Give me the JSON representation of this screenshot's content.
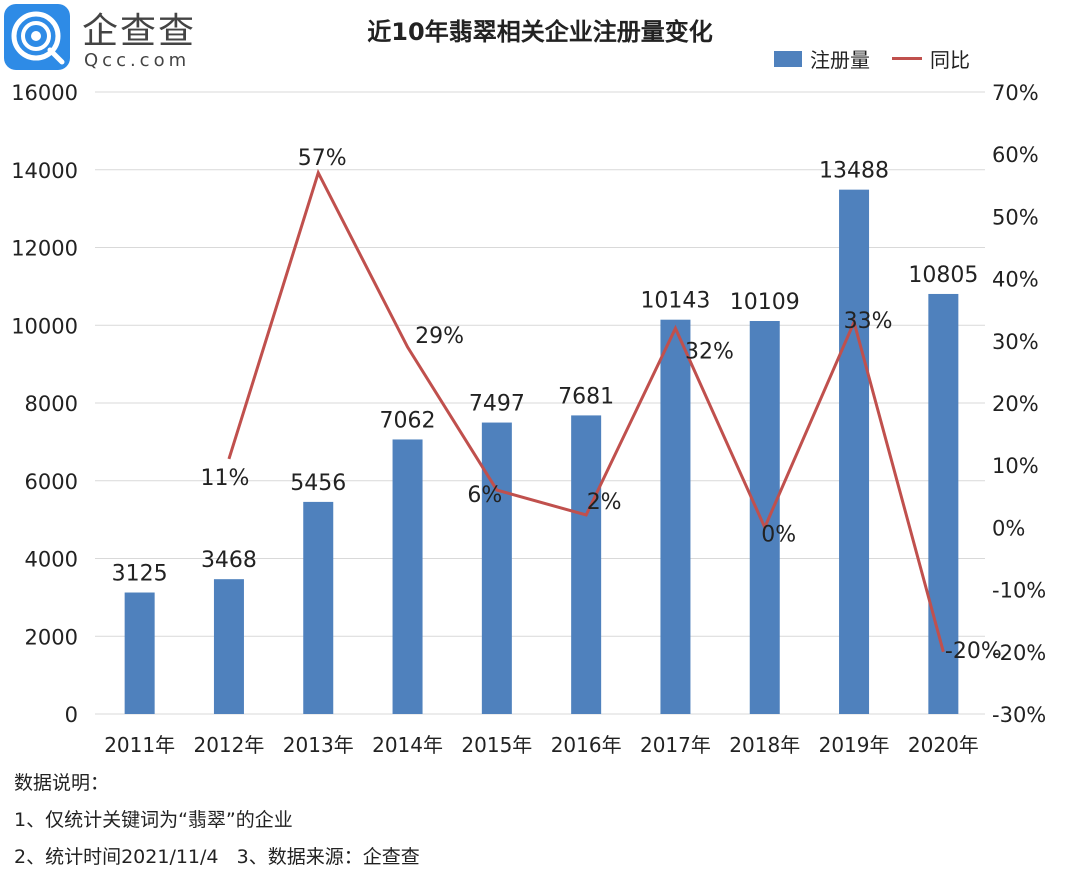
{
  "logo": {
    "brand": "企查查",
    "domain": "Qcc.com",
    "color": "#2e8be6"
  },
  "chart_data": {
    "type": "bar+line",
    "title": "近10年翡翠相关企业注册量变化",
    "categories": [
      "2011年",
      "2012年",
      "2013年",
      "2014年",
      "2015年",
      "2016年",
      "2017年",
      "2018年",
      "2019年",
      "2020年"
    ],
    "series": [
      {
        "name": "注册量",
        "type": "bar",
        "axis": "left",
        "color": "#4f81bd",
        "values": [
          3125,
          3468,
          5456,
          7062,
          7497,
          7681,
          10143,
          10109,
          13488,
          10805
        ],
        "labels": [
          "3125",
          "3468",
          "5456",
          "7062",
          "7497",
          "7681",
          "10143",
          "10109",
          "13488",
          "10805"
        ]
      },
      {
        "name": "同比",
        "type": "line",
        "axis": "right",
        "color": "#c0504d",
        "values": [
          null,
          11,
          57,
          29,
          6,
          2,
          32,
          0,
          33,
          -20
        ],
        "labels": [
          "",
          "11%",
          "57%",
          "29%",
          "6%",
          "2%",
          "32%",
          "0%",
          "33%",
          "-20%"
        ]
      }
    ],
    "y_left": {
      "range": [
        0,
        16000
      ],
      "ticks": [
        "0",
        "2000",
        "4000",
        "6000",
        "8000",
        "10000",
        "12000",
        "14000",
        "16000"
      ]
    },
    "y_right": {
      "range": [
        -30,
        70
      ],
      "ticks": [
        "-30%",
        "-20%",
        "-10%",
        "0%",
        "10%",
        "20%",
        "30%",
        "40%",
        "50%",
        "60%",
        "70%"
      ]
    },
    "grid": true,
    "legend": "top-right"
  },
  "notes": {
    "heading": "数据说明：",
    "line1": "1、仅统计关键词为“翡翠”的企业",
    "line2": "2、统计时间2021/11/4   3、数据来源：企查查"
  }
}
